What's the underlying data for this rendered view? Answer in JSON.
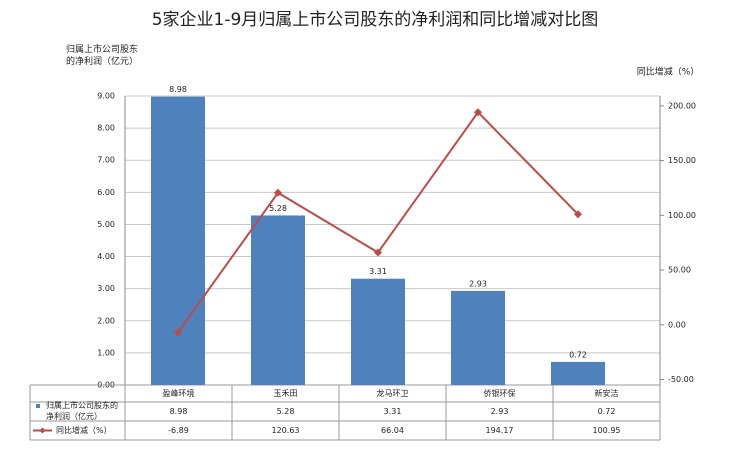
{
  "chart_data": {
    "type": "bar-line",
    "title": "5家企业1-9月归属上市公司股东的净利润和同比增减对比图",
    "ylabel": "归属上市公司股东的净利润（亿元）",
    "y2label": "同比增减（%）",
    "categories": [
      "盈峰环境",
      "玉禾田",
      "龙马环卫",
      "侨银环保",
      "新安洁"
    ],
    "series": [
      {
        "name": "归属上市公司股东的净利润（亿元）",
        "type": "bar",
        "color": "#4f81bd",
        "values": [
          8.98,
          5.28,
          3.31,
          2.93,
          0.72
        ]
      },
      {
        "name": "同比增减（%）",
        "type": "line",
        "axis": "y2",
        "color": "#be4b48",
        "values": [
          -6.89,
          120.63,
          66.04,
          194.17,
          100.95
        ]
      }
    ],
    "ylim": [
      0,
      9
    ],
    "yticks": [
      {
        "value": 0,
        "label": "0.00"
      },
      {
        "value": 1,
        "label": "1.00"
      },
      {
        "value": 2,
        "label": "2.00"
      },
      {
        "value": 3,
        "label": "3.00"
      },
      {
        "value": 4,
        "label": "4.00"
      },
      {
        "value": 5,
        "label": "5.00"
      },
      {
        "value": 6,
        "label": "6.00"
      },
      {
        "value": 7,
        "label": "7.00"
      },
      {
        "value": 8,
        "label": "8.00"
      },
      {
        "value": 9,
        "label": "9.00"
      }
    ],
    "y2lim": [
      -55,
      209
    ],
    "y2ticks": [
      {
        "value": -50,
        "label": "-50.00"
      },
      {
        "value": 0,
        "label": "0.00"
      },
      {
        "value": 50,
        "label": "50.00"
      },
      {
        "value": 100,
        "label": "100.00"
      },
      {
        "value": 150,
        "label": "150.00"
      },
      {
        "value": 200,
        "label": "200.00"
      }
    ],
    "grid": true
  }
}
